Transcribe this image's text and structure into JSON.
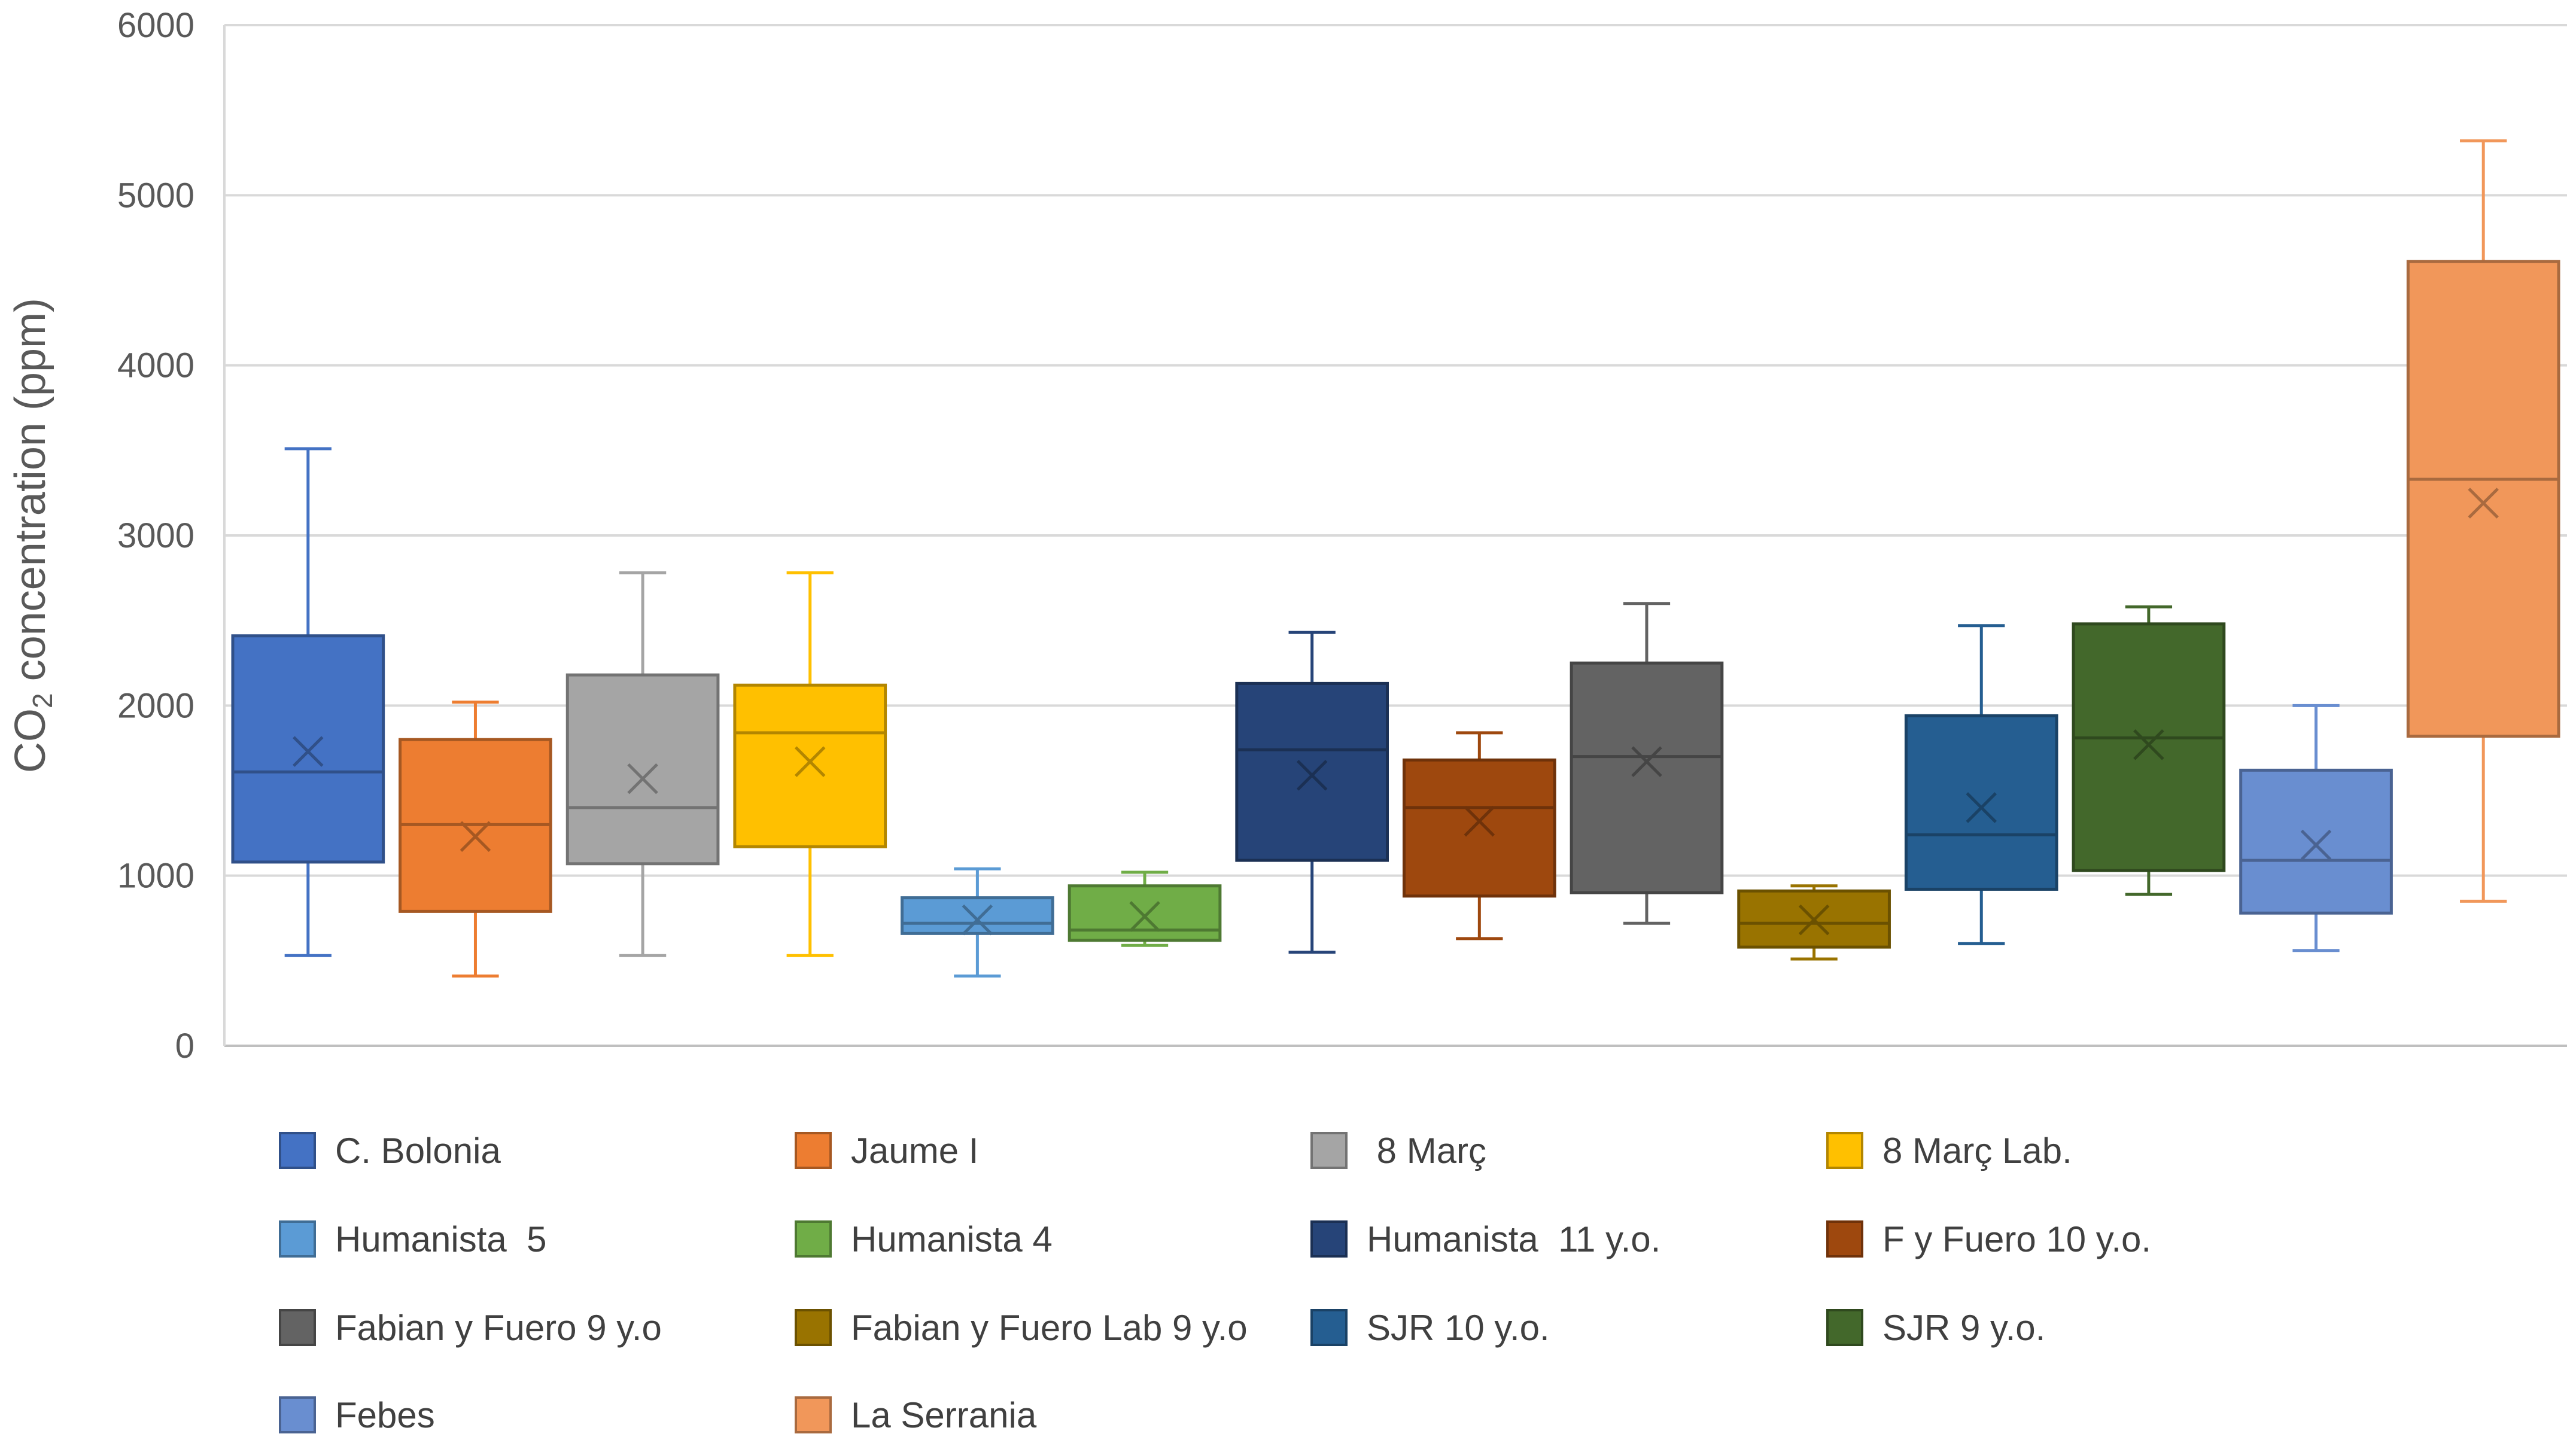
{
  "chart_data": {
    "type": "box",
    "title": "",
    "xlabel": "",
    "ylabel": {
      "prefix": "CO",
      "subscript": "2",
      "suffix": " concentration (ppm)"
    },
    "ylim": [
      0,
      6000
    ],
    "yticks": [
      "0",
      "1000",
      "2000",
      "3000",
      "4000",
      "5000",
      "6000"
    ],
    "ytick_values": [
      0,
      1000,
      2000,
      3000,
      4000,
      5000,
      6000
    ],
    "grid": true,
    "legend_position": "bottom",
    "series": [
      {
        "name": "C. Bolonia",
        "color": "#4472C4",
        "min": 530,
        "q1": 1080,
        "median": 1610,
        "q3": 2410,
        "max": 3510,
        "mean": 1730
      },
      {
        "name": "Jaume I",
        "color": "#ED7D31",
        "min": 410,
        "q1": 790,
        "median": 1300,
        "q3": 1800,
        "max": 2020,
        "mean": 1230
      },
      {
        "name": " 8 Març",
        "color": "#A5A5A5",
        "min": 530,
        "q1": 1070,
        "median": 1400,
        "q3": 2180,
        "max": 2780,
        "mean": 1570
      },
      {
        "name": "8 Març Lab.",
        "color": "#FFC000",
        "min": 530,
        "q1": 1170,
        "median": 1840,
        "q3": 2120,
        "max": 2780,
        "mean": 1670
      },
      {
        "name": "Humanista  5",
        "color": "#5B9BD5",
        "min": 410,
        "q1": 660,
        "median": 720,
        "q3": 870,
        "max": 1040,
        "mean": 740
      },
      {
        "name": "Humanista 4",
        "color": "#70AD47",
        "min": 590,
        "q1": 620,
        "median": 680,
        "q3": 940,
        "max": 1020,
        "mean": 760
      },
      {
        "name": "Humanista  11 y.o.",
        "color": "#264478",
        "min": 550,
        "q1": 1090,
        "median": 1740,
        "q3": 2130,
        "max": 2430,
        "mean": 1590
      },
      {
        "name": "F y Fuero 10 y.o.",
        "color": "#9E480E",
        "min": 630,
        "q1": 880,
        "median": 1400,
        "q3": 1680,
        "max": 1840,
        "mean": 1320
      },
      {
        "name": "Fabian y Fuero 9 y.o",
        "color": "#636363",
        "min": 720,
        "q1": 900,
        "median": 1700,
        "q3": 2250,
        "max": 2600,
        "mean": 1670
      },
      {
        "name": "Fabian y Fuero Lab 9 y.o",
        "color": "#997300",
        "min": 510,
        "q1": 580,
        "median": 720,
        "q3": 910,
        "max": 940,
        "mean": 740
      },
      {
        "name": "SJR 10 y.o.",
        "color": "#255E91",
        "min": 600,
        "q1": 920,
        "median": 1240,
        "q3": 1940,
        "max": 2470,
        "mean": 1400
      },
      {
        "name": "SJR 9 y.o.",
        "color": "#43682B",
        "min": 890,
        "q1": 1030,
        "median": 1810,
        "q3": 2480,
        "max": 2580,
        "mean": 1770
      },
      {
        "name": "Febes",
        "color": "#698ED0",
        "min": 560,
        "q1": 780,
        "median": 1090,
        "q3": 1620,
        "max": 2000,
        "mean": 1180
      },
      {
        "name": "La Serrania",
        "color": "#F1975A",
        "min": 850,
        "q1": 1820,
        "median": 3330,
        "q3": 4610,
        "max": 5320,
        "mean": 3190
      }
    ]
  }
}
